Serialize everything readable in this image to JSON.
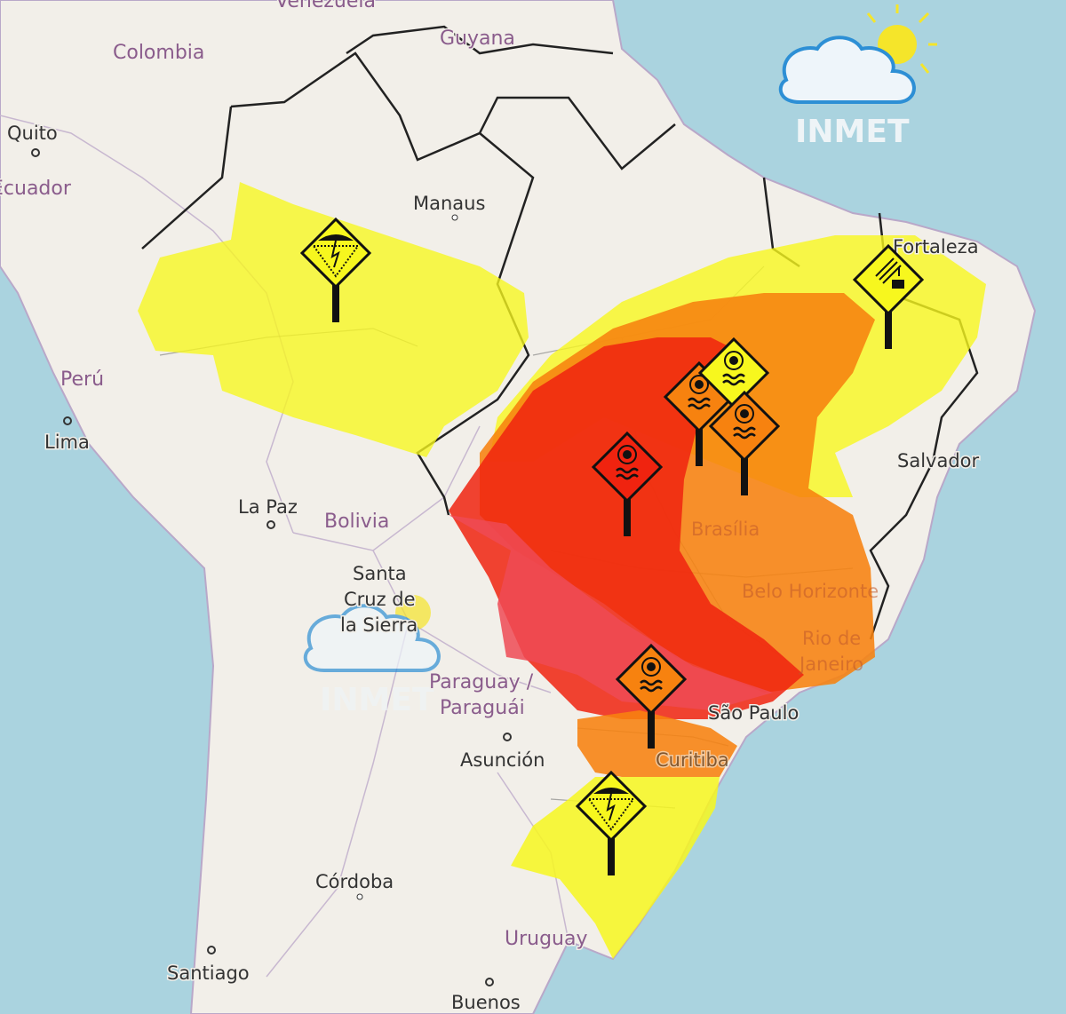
{
  "map": {
    "colors": {
      "ocean": "#aad3df",
      "land": "#f2efe9",
      "yellow_alert": "#f7f71e",
      "orange_alert": "#f7820f",
      "red_alert": "#f0230f",
      "pink_alert": "#ef4a55",
      "border": "#222222"
    },
    "labels": {
      "venezuela": "Venezuela",
      "guyana": "Guyana",
      "colombia": "Colombia",
      "quito": "Quito",
      "ecuador": "Ecuador",
      "manaus": "Manaus",
      "fortaleza": "Fortaleza",
      "peru": "Perú",
      "lima": "Lima",
      "salvador": "Salvador",
      "la_paz": "La Paz",
      "bolivia": "Bolivia",
      "brasilia": "Brasília",
      "santa_cruz_1": "Santa",
      "santa_cruz_2": "Cruz de",
      "santa_cruz_3": "la Sierra",
      "belo_horizonte": "Belo Horizonte",
      "rio_1": "Rio de",
      "rio_2": "Janeiro",
      "paraguay_1": "Paraguay /",
      "paraguay_2": "Paraguái",
      "sao_paulo": "São Paulo",
      "asuncion": "Asunción",
      "curitiba": "Curitiba",
      "cordoba": "Córdoba",
      "uruguay": "Uruguay",
      "santiago": "Santiago",
      "buenos": "Buenos"
    },
    "logo": {
      "text": "INMET",
      "icon": "cloud-sun-icon"
    },
    "alert_signs": [
      {
        "icon": "storm-icon",
        "level": "yellow"
      },
      {
        "icon": "dry-air-icon",
        "level": "yellow"
      },
      {
        "icon": "heat-wave-icon",
        "level": "orange"
      },
      {
        "icon": "heat-wave-icon",
        "level": "yellow"
      },
      {
        "icon": "heat-wave-icon",
        "level": "orange"
      },
      {
        "icon": "heat-wave-icon",
        "level": "red"
      },
      {
        "icon": "heat-wave-icon",
        "level": "orange"
      },
      {
        "icon": "storm-icon",
        "level": "yellow"
      }
    ]
  }
}
